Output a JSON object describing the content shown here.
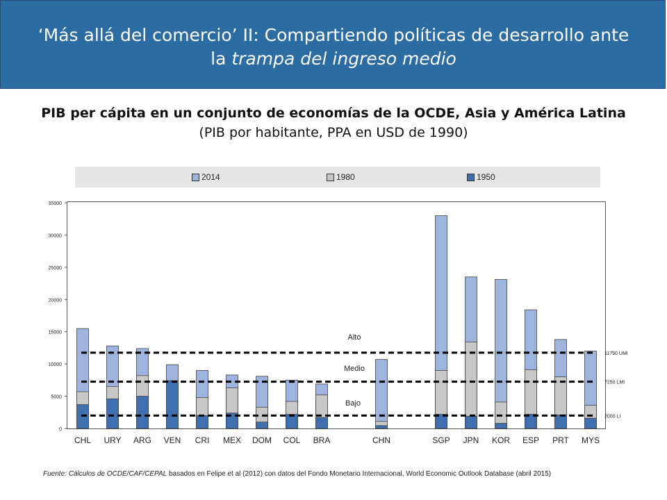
{
  "header": {
    "title_part1": "‘Más allá del comercio’ II: Compartiendo políticas de desarrollo ante",
    "title_part2": "la ",
    "title_italic": "trampa del ingreso medio"
  },
  "chart_title": "PIB per cápita en un conjunto de economías de la OCDE, Asia y América Latina",
  "chart_subtitle": "(PIB por habitante, PPA en USD de 1990)",
  "colors": {
    "header_bg": "#2b6ca3",
    "s2014": "#9fb3df",
    "s1980": "#c8c8c8",
    "s1950": "#3f6fae"
  },
  "chart_data": {
    "type": "bar",
    "categories": [
      "CHL",
      "URY",
      "ARG",
      "VEN",
      "CRI",
      "MEX",
      "DOM",
      "COL",
      "BRA",
      "CHN",
      "SGP",
      "JPN",
      "KOR",
      "ESP",
      "PRT",
      "MYS"
    ],
    "series": [
      {
        "name": "2014",
        "values": [
          15500,
          12800,
          12400,
          9900,
          9000,
          8300,
          8100,
          7500,
          6900,
          10700,
          33000,
          23500,
          23100,
          18400,
          13800,
          12000
        ]
      },
      {
        "name": "1980",
        "values": [
          5700,
          6500,
          8200,
          7400,
          4800,
          6300,
          3300,
          4200,
          5200,
          1100,
          9000,
          13400,
          4100,
          9100,
          8000,
          3600
        ]
      },
      {
        "name": "1950",
        "values": [
          3700,
          4600,
          5000,
          7400,
          2000,
          2400,
          1000,
          2200,
          1700,
          450,
          2200,
          1900,
          800,
          2200,
          2100,
          1600
        ]
      }
    ],
    "ylim": [
      0,
      35000
    ],
    "yticks": [
      "0",
      "5000",
      "10000",
      "15000",
      "20000",
      "25000",
      "30000",
      "35000"
    ],
    "thresholds": [
      {
        "value": 11750,
        "label": "11750 UMI"
      },
      {
        "value": 7250,
        "label": "7250 LMI"
      },
      {
        "value": 2000,
        "label": "2000 LI"
      }
    ],
    "zone_labels": [
      "Alto",
      "Medio",
      "Bajo"
    ],
    "legend": [
      "2014",
      "1980",
      "1950"
    ],
    "legend_position": "top"
  },
  "source": {
    "italic": "Fuente: Cálculos de OCDE/CAF/CEPAL",
    "text": " basados en Felipe et al (2012) con datos del Fondo Monetario Internacional, World Economic Outlook Database (abril 2015)"
  }
}
